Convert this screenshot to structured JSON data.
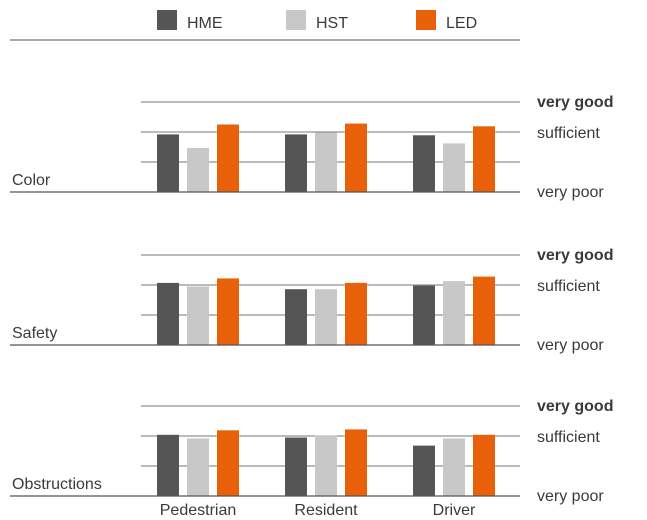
{
  "chart_data": {
    "type": "bar",
    "legend": {
      "placement": "top",
      "entries": [
        {
          "name": "HME",
          "color": "#555555"
        },
        {
          "name": "HST",
          "color": "#c8c8c8"
        },
        {
          "name": "LED",
          "color": "#e8600a"
        }
      ]
    },
    "categories": [
      "Pedestrian",
      "Resident",
      "Driver"
    ],
    "scale_labels": {
      "top": "very good",
      "middle": "sufficient",
      "bottom": "very poor"
    },
    "ylim": [
      0,
      1
    ],
    "grid": true,
    "panels": [
      {
        "label": "Color",
        "series": [
          {
            "name": "HME",
            "values": [
              0.64,
              0.64,
              0.63
            ]
          },
          {
            "name": "HST",
            "values": [
              0.49,
              0.66,
              0.54
            ]
          },
          {
            "name": "LED",
            "values": [
              0.75,
              0.76,
              0.73
            ]
          }
        ]
      },
      {
        "label": "Safety",
        "series": [
          {
            "name": "HME",
            "values": [
              0.69,
              0.62,
              0.66
            ]
          },
          {
            "name": "HST",
            "values": [
              0.65,
              0.62,
              0.71
            ]
          },
          {
            "name": "LED",
            "values": [
              0.74,
              0.69,
              0.76
            ]
          }
        ]
      },
      {
        "label": "Obstructions",
        "series": [
          {
            "name": "HME",
            "values": [
              0.68,
              0.65,
              0.56
            ]
          },
          {
            "name": "HST",
            "values": [
              0.64,
              0.67,
              0.64
            ]
          },
          {
            "name": "LED",
            "values": [
              0.73,
              0.74,
              0.68
            ]
          }
        ]
      }
    ]
  }
}
